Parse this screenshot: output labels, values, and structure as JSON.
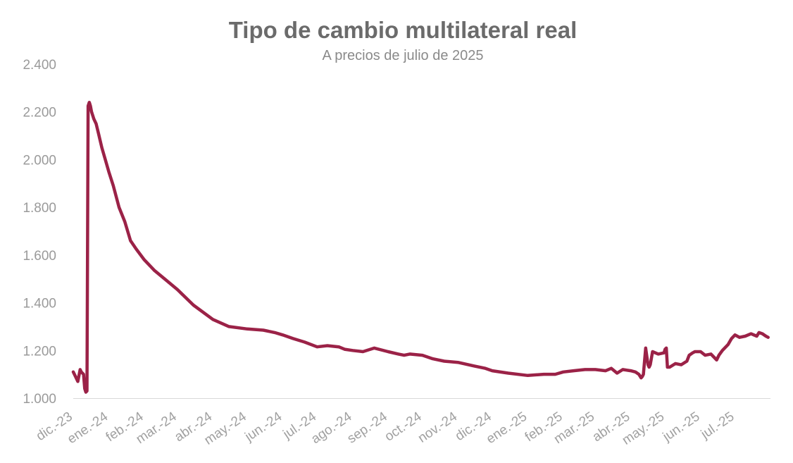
{
  "chart_data": {
    "type": "line",
    "title": "Tipo de cambio multilateral real",
    "subtitle": "A precios de julio de 2025",
    "xlabel": "",
    "ylabel": "",
    "ylim": [
      1000,
      2400
    ],
    "yticks": [
      1000,
      1200,
      1400,
      1600,
      1800,
      2000,
      2200,
      2400
    ],
    "ytick_labels": [
      "1.000",
      "1.200",
      "1.400",
      "1.600",
      "1.800",
      "2.000",
      "2.200",
      "2.400"
    ],
    "xtick_labels": [
      "dic.-23",
      "ene.-24",
      "feb.-24",
      "mar.-24",
      "abr.-24",
      "may.-24",
      "jun.-24",
      "jul.-24",
      "ago.-24",
      "sep.-24",
      "oct.-24",
      "nov.-24",
      "dic.-24",
      "ene.-25",
      "feb.-25",
      "mar.-25",
      "abr.-25",
      "may.-25",
      "jun.-25",
      "jul.-25"
    ],
    "grid": false,
    "line_color": "#9b2247",
    "series": [
      {
        "x": [
          "2023-12-01",
          "2023-12-03",
          "2023-12-05",
          "2023-12-07",
          "2023-12-08",
          "2023-12-10",
          "2023-12-11",
          "2023-12-12",
          "2023-12-13",
          "2023-12-14",
          "2023-12-15",
          "2023-12-16",
          "2023-12-17",
          "2023-12-19",
          "2023-12-21",
          "2023-12-23",
          "2023-12-26",
          "2023-12-29",
          "2024-01-01",
          "2024-01-05",
          "2024-01-10",
          "2024-01-15",
          "2024-01-20",
          "2024-01-25",
          "2024-02-01",
          "2024-02-10",
          "2024-02-20",
          "2024-03-01",
          "2024-03-15",
          "2024-04-01",
          "2024-04-15",
          "2024-05-01",
          "2024-05-15",
          "2024-05-25",
          "2024-06-01",
          "2024-06-10",
          "2024-06-20",
          "2024-07-01",
          "2024-07-10",
          "2024-07-20",
          "2024-07-25",
          "2024-08-01",
          "2024-08-10",
          "2024-08-20",
          "2024-09-01",
          "2024-09-10",
          "2024-09-15",
          "2024-09-20",
          "2024-10-01",
          "2024-10-10",
          "2024-10-20",
          "2024-11-01",
          "2024-11-15",
          "2024-11-25",
          "2024-12-01",
          "2024-12-15",
          "2025-01-01",
          "2025-01-15",
          "2025-01-25",
          "2025-02-01",
          "2025-02-10",
          "2025-02-20",
          "2025-03-01",
          "2025-03-10",
          "2025-03-15",
          "2025-03-20",
          "2025-03-25",
          "2025-04-01",
          "2025-04-05",
          "2025-04-08",
          "2025-04-10",
          "2025-04-11",
          "2025-04-12",
          "2025-04-14",
          "2025-04-16",
          "2025-04-17",
          "2025-04-18",
          "2025-04-20",
          "2025-04-25",
          "2025-04-30",
          "2025-05-01",
          "2025-05-02",
          "2025-05-03",
          "2025-05-05",
          "2025-05-10",
          "2025-05-15",
          "2025-05-20",
          "2025-05-22",
          "2025-05-25",
          "2025-05-27",
          "2025-06-01",
          "2025-06-05",
          "2025-06-10",
          "2025-06-15",
          "2025-06-17",
          "2025-06-20",
          "2025-06-25",
          "2025-06-28",
          "2025-07-01",
          "2025-07-05",
          "2025-07-10",
          "2025-07-15",
          "2025-07-20",
          "2025-07-22",
          "2025-07-25",
          "2025-07-28",
          "2025-07-30"
        ],
        "values": [
          1110,
          1090,
          1070,
          1120,
          1110,
          1100,
          1040,
          1025,
          1030,
          2225,
          2240,
          2225,
          2200,
          2170,
          2150,
          2110,
          2050,
          2000,
          1950,
          1890,
          1800,
          1740,
          1660,
          1625,
          1580,
          1535,
          1495,
          1455,
          1390,
          1330,
          1300,
          1290,
          1285,
          1275,
          1265,
          1250,
          1235,
          1215,
          1220,
          1215,
          1205,
          1200,
          1195,
          1210,
          1195,
          1185,
          1180,
          1185,
          1180,
          1165,
          1155,
          1150,
          1135,
          1125,
          1115,
          1105,
          1095,
          1100,
          1100,
          1110,
          1115,
          1120,
          1120,
          1115,
          1125,
          1105,
          1120,
          1115,
          1110,
          1100,
          1085,
          1090,
          1100,
          1210,
          1140,
          1130,
          1140,
          1195,
          1185,
          1190,
          1205,
          1210,
          1130,
          1130,
          1145,
          1140,
          1155,
          1180,
          1190,
          1195,
          1195,
          1180,
          1185,
          1160,
          1180,
          1200,
          1225,
          1250,
          1265,
          1255,
          1260,
          1270,
          1260,
          1275,
          1270,
          1260,
          1255
        ]
      }
    ]
  }
}
